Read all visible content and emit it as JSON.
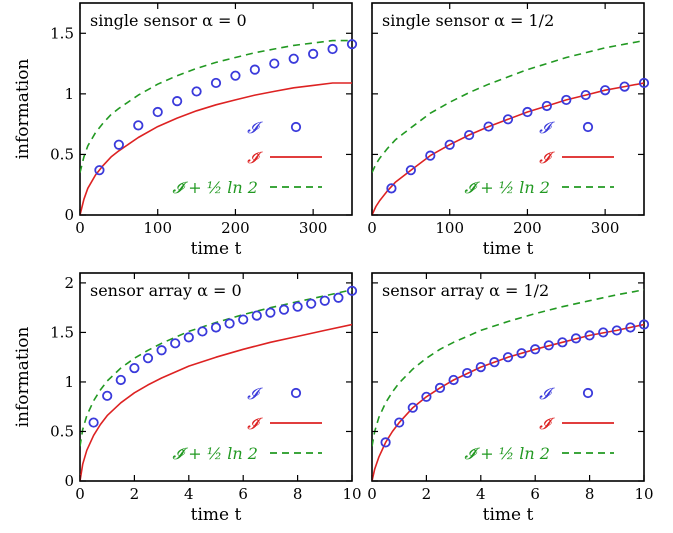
{
  "colors": {
    "I": "#3a3adb",
    "I_tilde": "#dd2222",
    "I_tilde_shifted": "#229922",
    "axis": "#000000"
  },
  "chart_data": [
    {
      "type": "line",
      "title": "single sensor α = 0",
      "xlabel": "time t",
      "ylabel": "information",
      "xlim": [
        0,
        350
      ],
      "ylim": [
        0,
        1.75
      ],
      "xticks": [
        0,
        100,
        200,
        300
      ],
      "xtick_labels": [
        "0",
        "100",
        "200",
        "300"
      ],
      "yticks": [
        0,
        0.5,
        1,
        1.5
      ],
      "ytick_labels": [
        "0",
        "0.5",
        "1",
        "1.5"
      ],
      "grid": false,
      "legend_position": "bottom-right",
      "legend": [
        "𝓘",
        "𝓘̃",
        "𝓘̃ + ½ ln 2"
      ],
      "series": [
        {
          "name": "𝓘",
          "style": "markers",
          "x": [
            25,
            50,
            75,
            100,
            125,
            150,
            175,
            200,
            225,
            250,
            275,
            300,
            325,
            350
          ],
          "y": [
            0.37,
            0.58,
            0.74,
            0.85,
            0.94,
            1.02,
            1.09,
            1.15,
            1.2,
            1.25,
            1.29,
            1.33,
            1.37,
            1.41
          ]
        },
        {
          "name": "𝓘̃",
          "style": "solid",
          "x": [
            0,
            5,
            10,
            20,
            30,
            40,
            50,
            75,
            100,
            125,
            150,
            175,
            200,
            225,
            250,
            275,
            300,
            325,
            350
          ],
          "y": [
            0,
            0.13,
            0.22,
            0.33,
            0.41,
            0.48,
            0.53,
            0.64,
            0.73,
            0.8,
            0.86,
            0.91,
            0.95,
            0.99,
            1.02,
            1.05,
            1.07,
            1.09,
            1.09
          ]
        },
        {
          "name": "𝓘̃ + ½ ln 2",
          "style": "dashed",
          "x": [
            0,
            5,
            10,
            20,
            30,
            40,
            50,
            75,
            100,
            125,
            150,
            175,
            200,
            225,
            250,
            275,
            300,
            325,
            350
          ],
          "y": [
            0.35,
            0.48,
            0.57,
            0.68,
            0.76,
            0.83,
            0.88,
            0.99,
            1.08,
            1.15,
            1.21,
            1.26,
            1.3,
            1.34,
            1.37,
            1.4,
            1.42,
            1.44,
            1.44
          ]
        }
      ]
    },
    {
      "type": "line",
      "title": "single sensor α = 1/2",
      "xlabel": "time t",
      "ylabel": "",
      "xlim": [
        0,
        350
      ],
      "ylim": [
        0,
        1.75
      ],
      "xticks": [
        0,
        100,
        200,
        300
      ],
      "xtick_labels": [
        "0",
        "100",
        "200",
        "300"
      ],
      "yticks": [
        0,
        0.5,
        1,
        1.5
      ],
      "ytick_labels": [],
      "grid": false,
      "legend_position": "bottom-right",
      "legend": [
        "𝓘",
        "𝓘̃",
        "𝓘̃ + ½ ln 2"
      ],
      "series": [
        {
          "name": "𝓘",
          "style": "markers",
          "x": [
            25,
            50,
            75,
            100,
            125,
            150,
            175,
            200,
            225,
            250,
            275,
            300,
            325,
            350
          ],
          "y": [
            0.22,
            0.37,
            0.49,
            0.58,
            0.66,
            0.73,
            0.79,
            0.85,
            0.9,
            0.95,
            0.99,
            1.03,
            1.06,
            1.09
          ]
        },
        {
          "name": "𝓘̃",
          "style": "solid",
          "x": [
            0,
            5,
            10,
            20,
            30,
            40,
            50,
            75,
            100,
            125,
            150,
            175,
            200,
            225,
            250,
            275,
            300,
            325,
            350
          ],
          "y": [
            0,
            0.07,
            0.12,
            0.2,
            0.27,
            0.32,
            0.37,
            0.49,
            0.58,
            0.66,
            0.73,
            0.79,
            0.85,
            0.9,
            0.95,
            0.99,
            1.03,
            1.06,
            1.09
          ]
        },
        {
          "name": "𝓘̃ + ½ ln 2",
          "style": "dashed",
          "x": [
            0,
            5,
            10,
            20,
            30,
            40,
            50,
            75,
            100,
            125,
            150,
            175,
            200,
            225,
            250,
            275,
            300,
            325,
            350
          ],
          "y": [
            0.35,
            0.42,
            0.47,
            0.55,
            0.62,
            0.67,
            0.72,
            0.84,
            0.93,
            1.01,
            1.08,
            1.14,
            1.2,
            1.25,
            1.3,
            1.34,
            1.38,
            1.41,
            1.44
          ]
        }
      ]
    },
    {
      "type": "line",
      "title": "sensor array α = 0",
      "xlabel": "time t",
      "ylabel": "information",
      "xlim": [
        0,
        10
      ],
      "ylim": [
        0,
        2.1
      ],
      "xticks": [
        0,
        2,
        4,
        6,
        8,
        10
      ],
      "xtick_labels": [
        "0",
        "2",
        "4",
        "6",
        "8",
        "10"
      ],
      "yticks": [
        0,
        0.5,
        1,
        1.5,
        2
      ],
      "ytick_labels": [
        "0",
        "0.5",
        "1",
        "1.5",
        "2"
      ],
      "grid": false,
      "legend_position": "bottom-right",
      "legend": [
        "𝓘",
        "𝓘̃",
        "𝓘̃ + ½ ln 2"
      ],
      "series": [
        {
          "name": "𝓘",
          "style": "markers",
          "x": [
            0.5,
            1,
            1.5,
            2,
            2.5,
            3,
            3.5,
            4,
            4.5,
            5,
            5.5,
            6,
            6.5,
            7,
            7.5,
            8,
            8.5,
            9,
            9.5,
            10
          ],
          "y": [
            0.59,
            0.86,
            1.02,
            1.14,
            1.24,
            1.32,
            1.39,
            1.45,
            1.51,
            1.55,
            1.59,
            1.63,
            1.67,
            1.7,
            1.73,
            1.76,
            1.79,
            1.82,
            1.85,
            1.92
          ]
        },
        {
          "name": "𝓘̃",
          "style": "solid",
          "x": [
            0,
            0.1,
            0.25,
            0.5,
            0.75,
            1,
            1.5,
            2,
            2.5,
            3,
            4,
            5,
            6,
            7,
            8,
            9,
            10
          ],
          "y": [
            0,
            0.17,
            0.31,
            0.46,
            0.57,
            0.66,
            0.79,
            0.89,
            0.97,
            1.04,
            1.16,
            1.25,
            1.33,
            1.4,
            1.46,
            1.52,
            1.58
          ]
        },
        {
          "name": "𝓘̃ + ½ ln 2",
          "style": "dashed",
          "x": [
            0,
            0.1,
            0.25,
            0.5,
            0.75,
            1,
            1.5,
            2,
            2.5,
            3,
            4,
            5,
            6,
            7,
            8,
            9,
            10
          ],
          "y": [
            0.35,
            0.52,
            0.66,
            0.81,
            0.92,
            1.01,
            1.14,
            1.24,
            1.32,
            1.39,
            1.51,
            1.6,
            1.68,
            1.75,
            1.81,
            1.87,
            1.93
          ]
        }
      ]
    },
    {
      "type": "line",
      "title": "sensor array α = 1/2",
      "xlabel": "time t",
      "ylabel": "",
      "xlim": [
        0,
        10
      ],
      "ylim": [
        0,
        2.1
      ],
      "xticks": [
        0,
        2,
        4,
        6,
        8,
        10
      ],
      "xtick_labels": [
        "0",
        "2",
        "4",
        "6",
        "8",
        "10"
      ],
      "yticks": [
        0,
        0.5,
        1,
        1.5,
        2
      ],
      "ytick_labels": [],
      "grid": false,
      "legend_position": "bottom-right",
      "legend": [
        "𝓘",
        "𝓘̃",
        "𝓘̃ + ½ ln 2"
      ],
      "series": [
        {
          "name": "𝓘",
          "style": "markers",
          "x": [
            0.5,
            1,
            1.5,
            2,
            2.5,
            3,
            3.5,
            4,
            4.5,
            5,
            5.5,
            6,
            6.5,
            7,
            7.5,
            8,
            8.5,
            9,
            9.5,
            10
          ],
          "y": [
            0.39,
            0.59,
            0.74,
            0.85,
            0.94,
            1.02,
            1.09,
            1.15,
            1.2,
            1.25,
            1.29,
            1.33,
            1.37,
            1.4,
            1.44,
            1.47,
            1.5,
            1.52,
            1.55,
            1.58
          ]
        },
        {
          "name": "𝓘̃",
          "style": "solid",
          "x": [
            0,
            0.1,
            0.25,
            0.5,
            0.75,
            1,
            1.5,
            2,
            2.5,
            3,
            4,
            5,
            6,
            7,
            8,
            9,
            10
          ],
          "y": [
            0,
            0.12,
            0.24,
            0.39,
            0.5,
            0.59,
            0.74,
            0.85,
            0.94,
            1.02,
            1.15,
            1.25,
            1.33,
            1.4,
            1.47,
            1.52,
            1.58
          ]
        },
        {
          "name": "𝓘̃ + ½ ln 2",
          "style": "dashed",
          "x": [
            0,
            0.1,
            0.25,
            0.5,
            0.75,
            1,
            1.5,
            2,
            2.5,
            3,
            4,
            5,
            6,
            7,
            8,
            9,
            10
          ],
          "y": [
            0.35,
            0.5,
            0.64,
            0.79,
            0.9,
            0.99,
            1.13,
            1.24,
            1.33,
            1.4,
            1.52,
            1.61,
            1.69,
            1.76,
            1.82,
            1.88,
            1.93
          ]
        }
      ]
    }
  ]
}
